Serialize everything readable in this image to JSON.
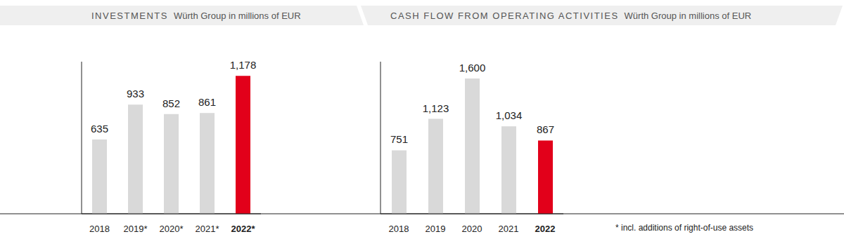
{
  "chart_data": [
    {
      "type": "bar",
      "title": "INVESTMENTS",
      "subtitle": "Würth Group in millions of EUR",
      "categories": [
        "2018",
        "2019*",
        "2020*",
        "2021*",
        "2022*"
      ],
      "values": [
        635,
        933,
        852,
        861,
        1178
      ],
      "value_labels": [
        "635",
        "933",
        "852",
        "861",
        "1,178"
      ],
      "colors": [
        "#d9d9d9",
        "#d9d9d9",
        "#d9d9d9",
        "#d9d9d9",
        "#e2001a"
      ],
      "ylim": [
        0,
        1300
      ],
      "tick_labels": "x",
      "data_labels": true,
      "grid": false
    },
    {
      "type": "bar",
      "title": "CASH FLOW FROM OPERATING ACTIVITIES",
      "subtitle": "Würth Group in millions of EUR",
      "categories": [
        "2018",
        "2019",
        "2020",
        "2021",
        "2022"
      ],
      "values": [
        751,
        1123,
        1600,
        1034,
        867
      ],
      "value_labels": [
        "751",
        "1,123",
        "1,600",
        "1,034",
        "867"
      ],
      "colors": [
        "#d9d9d9",
        "#d9d9d9",
        "#d9d9d9",
        "#d9d9d9",
        "#e2001a"
      ],
      "ylim": [
        0,
        1800
      ],
      "tick_labels": "x",
      "data_labels": true,
      "grid": false,
      "annotations": [
        "* incl. additions of right-of-use assets"
      ]
    }
  ]
}
